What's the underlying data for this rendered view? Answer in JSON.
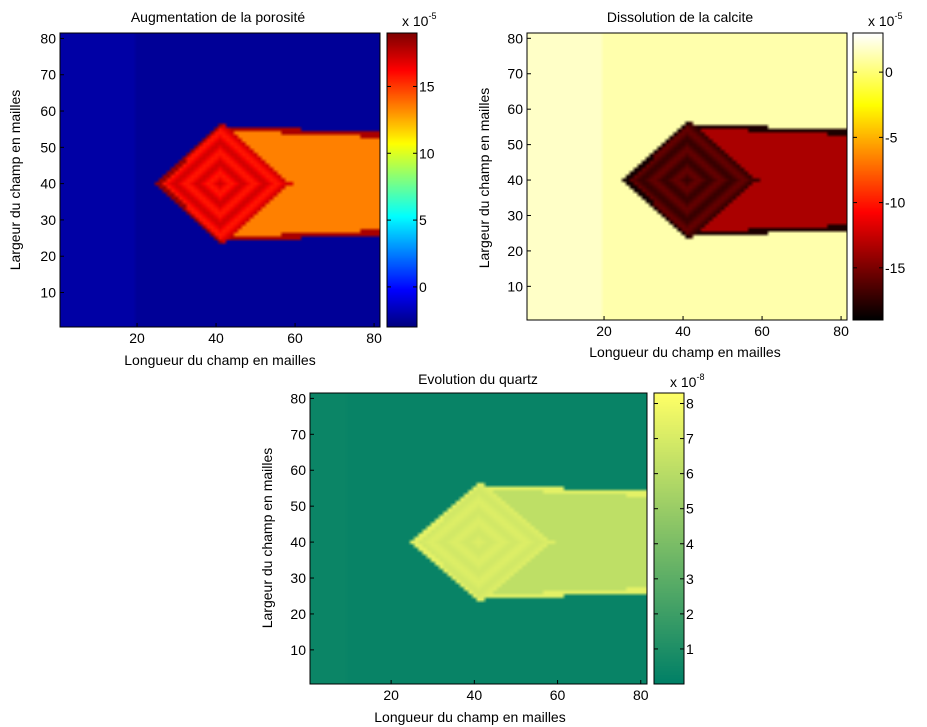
{
  "chart_data": [
    {
      "type": "heatmap",
      "title": "Augmentation de la porosité",
      "xlabel": "Longueur du champ en mailles",
      "ylabel": "Largeur du champ en mailles",
      "xlim": [
        0.5,
        81.5
      ],
      "ylim": [
        0.5,
        81.5
      ],
      "xticks": [
        20,
        40,
        60,
        80
      ],
      "yticks": [
        10,
        20,
        30,
        40,
        50,
        60,
        70,
        80
      ],
      "colormap": "jet",
      "colorbar": {
        "scale_label": "x 10",
        "scale_exponent": "-5",
        "range": [
          -3,
          19
        ],
        "ticks": [
          0,
          5,
          10,
          15
        ],
        "tick_labels": [
          "0",
          "5",
          "10",
          "15"
        ]
      },
      "field": {
        "background": -2.5,
        "strip_value": -2.2,
        "strip_x": [
          1,
          19
        ],
        "front_x": 25,
        "center": [
          41,
          40
        ],
        "rim": 18.5,
        "interior": 16.5,
        "tail_value": 13.5,
        "tail_half_width": 14,
        "y_half_width": 16
      }
    },
    {
      "type": "heatmap",
      "title": "Dissolution de la calcite",
      "xlabel": "Longueur du champ en mailles",
      "ylabel": "Largeur du champ en mailles",
      "xlim": [
        0.5,
        81.5
      ],
      "ylim": [
        0.5,
        81.5
      ],
      "xticks": [
        20,
        40,
        60,
        80
      ],
      "yticks": [
        10,
        20,
        30,
        40,
        50,
        60,
        70,
        80
      ],
      "colormap": "hot",
      "colorbar": {
        "scale_label": "x 10",
        "scale_exponent": "-5",
        "range": [
          -19,
          3
        ],
        "ticks": [
          0,
          -5,
          -10,
          -15
        ],
        "tick_labels": [
          "0",
          "-5",
          "-10",
          "-15"
        ]
      },
      "field": {
        "background": 1.2,
        "strip_value": 1.8,
        "strip_x": [
          1,
          19
        ],
        "front_x": 25,
        "center": [
          41,
          40
        ],
        "rim": -18.5,
        "interior": -16.5,
        "tail_value": -13.5,
        "tail_half_width": 14,
        "y_half_width": 16
      }
    },
    {
      "type": "heatmap",
      "title": "Evolution du quartz",
      "xlabel": "Longueur du champ en mailles",
      "ylabel": "Largeur du champ en mailles",
      "xlim": [
        0.5,
        81.5
      ],
      "ylim": [
        0.5,
        81.5
      ],
      "xticks": [
        20,
        40,
        60,
        80
      ],
      "yticks": [
        10,
        20,
        30,
        40,
        50,
        60,
        70,
        80
      ],
      "colormap": "summer",
      "colorbar": {
        "scale_label": "x 10",
        "scale_exponent": "-8",
        "range": [
          0,
          8.3
        ],
        "ticks": [
          1,
          2,
          3,
          4,
          5,
          6,
          7,
          8
        ],
        "tick_labels": [
          "1",
          "2",
          "3",
          "4",
          "5",
          "6",
          "7",
          "8"
        ]
      },
      "field": {
        "background": 0.25,
        "strip_value": 0.35,
        "strip_x": [
          1,
          9
        ],
        "front_x": 25,
        "center": [
          41,
          40
        ],
        "rim": 7.5,
        "interior": 7.0,
        "tail_value": 6.2,
        "tail_half_width": 14,
        "y_half_width": 16
      }
    }
  ]
}
